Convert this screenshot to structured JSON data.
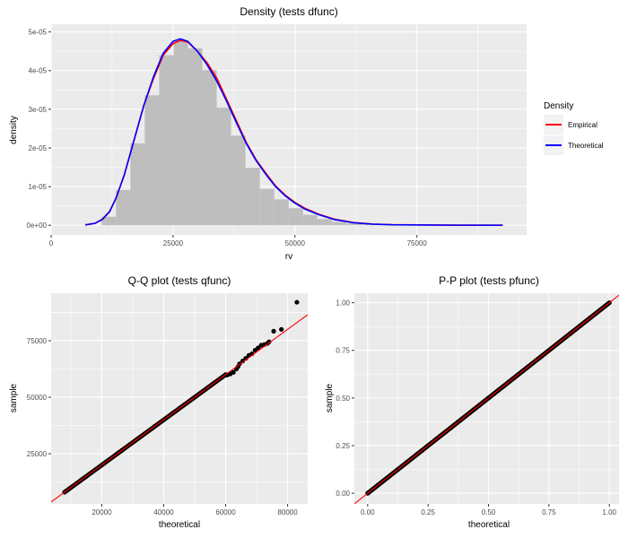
{
  "chart_data": [
    {
      "type": "histogram+line",
      "title": "Density (tests dfunc)",
      "xlabel": "rv",
      "ylabel": "density",
      "xlim": [
        0,
        97500
      ],
      "ylim": [
        -2.5e-06,
        5.2e-05
      ],
      "xticks": [
        0,
        25000,
        50000,
        75000
      ],
      "xtick_labels": [
        "0",
        "25000",
        "50000",
        "75000"
      ],
      "yticks": [
        0,
        1e-05,
        2e-05,
        3e-05,
        4e-05,
        5e-05
      ],
      "ytick_labels": [
        "0e+00",
        "1e-05",
        "2e-05",
        "3e-05",
        "4e-05",
        "5e-05"
      ],
      "grid": true,
      "histogram": {
        "bin_width": 2950,
        "bin_starts": [
          10350,
          13300,
          16250,
          19200,
          22150,
          25100,
          28050,
          31000,
          33950,
          36900,
          39850,
          42800,
          45750,
          48700,
          51650,
          54600,
          57550,
          60500,
          63450,
          66400,
          69350,
          72300
        ],
        "density": [
          2.2e-06,
          9.1e-06,
          2.12e-05,
          3.36e-05,
          4.4e-05,
          4.77e-05,
          4.58e-05,
          4.01e-05,
          3.04e-05,
          2.32e-05,
          1.49e-05,
          9.4e-06,
          6.7e-06,
          4.4e-06,
          2.7e-06,
          1.6e-06,
          9e-07,
          5e-07,
          3e-07,
          2e-07,
          1e-07,
          1e-07
        ]
      },
      "legend": {
        "title": "Density",
        "placement": "right"
      },
      "series": [
        {
          "name": "Empirical",
          "color": "#FF0000",
          "x": [
            7000,
            9000,
            10500,
            12000,
            13300,
            15000,
            17000,
            19000,
            21000,
            23000,
            25000,
            26500,
            28000,
            30000,
            32000,
            34000,
            36000,
            38000,
            40000,
            42000,
            44000,
            46000,
            48000,
            50000,
            52000,
            55000,
            58000,
            62000,
            66000,
            70000,
            80000,
            92600
          ],
          "y": [
            1e-07,
            5e-07,
            1.6e-06,
            3.6e-06,
            7e-06,
            1.3e-05,
            2.2e-05,
            3.1e-05,
            3.8e-05,
            4.4e-05,
            4.7e-05,
            4.78e-05,
            4.74e-05,
            4.5e-05,
            4.2e-05,
            3.8e-05,
            3.25e-05,
            2.7e-05,
            2.15e-05,
            1.7e-05,
            1.35e-05,
            1.02e-05,
            7.8e-06,
            5.9e-06,
            4.4e-06,
            2.8e-06,
            1.6e-06,
            7e-07,
            3e-07,
            1.5e-07,
            4e-08,
            1e-08
          ]
        },
        {
          "name": "Theoretical",
          "color": "#0000FF",
          "x": [
            7000,
            9000,
            10500,
            12000,
            13300,
            15000,
            17000,
            19000,
            21000,
            23000,
            25000,
            26500,
            28000,
            30000,
            32000,
            34000,
            36000,
            38000,
            40000,
            42000,
            44000,
            46000,
            48000,
            50000,
            52000,
            55000,
            58000,
            62000,
            66000,
            70000,
            80000,
            92600
          ],
          "y": [
            1e-07,
            5e-07,
            1.5e-06,
            3.5e-06,
            7e-06,
            1.3e-05,
            2.2e-05,
            3.1e-05,
            3.85e-05,
            4.45e-05,
            4.76e-05,
            4.82e-05,
            4.76e-05,
            4.5e-05,
            4.15e-05,
            3.72e-05,
            3.2e-05,
            2.65e-05,
            2.12e-05,
            1.68e-05,
            1.32e-05,
            1e-05,
            7.6e-06,
            5.7e-06,
            4.2e-06,
            2.7e-06,
            1.5e-06,
            6.5e-07,
            2.8e-07,
            1.3e-07,
            3e-08,
            1e-08
          ]
        }
      ]
    },
    {
      "type": "scatter",
      "title": "Q-Q plot (tests qfunc)",
      "xlabel": "theoretical",
      "ylabel": "sample",
      "xlim": [
        3650,
        86500
      ],
      "ylim": [
        2800,
        96000
      ],
      "xticks": [
        20000,
        40000,
        60000,
        80000
      ],
      "xtick_labels": [
        "20000",
        "40000",
        "60000",
        "80000"
      ],
      "yticks": [
        25000,
        50000,
        75000
      ],
      "ytick_labels": [
        "25000",
        "50000",
        "75000"
      ],
      "grid": true,
      "reference_line": {
        "slope": 1,
        "intercept": 0,
        "color": "#FF0000"
      },
      "points_range": {
        "from": 8000,
        "to": 60000,
        "step": 500
      },
      "tail_points": [
        [
          60500,
          59800
        ],
        [
          61500,
          60300
        ],
        [
          62500,
          61000
        ],
        [
          63500,
          62500
        ],
        [
          64000,
          63500
        ],
        [
          64500,
          64800
        ],
        [
          65500,
          66000
        ],
        [
          66500,
          67200
        ],
        [
          67500,
          68500
        ],
        [
          68500,
          69200
        ],
        [
          69500,
          70800
        ],
        [
          70500,
          71800
        ],
        [
          71500,
          73000
        ],
        [
          72500,
          73300
        ],
        [
          73500,
          73800
        ],
        [
          74000,
          74500
        ],
        [
          75500,
          79200
        ],
        [
          78000,
          80000
        ],
        [
          83000,
          92000
        ]
      ]
    },
    {
      "type": "scatter",
      "title": "P-P plot (tests pfunc)",
      "xlabel": "theoretical",
      "ylabel": "sample",
      "xlim": [
        -0.055,
        1.04
      ],
      "ylim": [
        -0.056,
        1.05
      ],
      "xticks": [
        0,
        0.25,
        0.5,
        0.75,
        1
      ],
      "xtick_labels": [
        "0.00",
        "0.25",
        "0.50",
        "0.75",
        "1.00"
      ],
      "yticks": [
        0,
        0.25,
        0.5,
        0.75,
        1
      ],
      "ytick_labels": [
        "0.00",
        "0.25",
        "0.50",
        "0.75",
        "1.00"
      ],
      "grid": true,
      "reference_line": {
        "slope": 1,
        "intercept": 0,
        "color": "#FF0000"
      },
      "points_range": {
        "from": 0,
        "to": 1,
        "step": 0.004
      }
    }
  ]
}
